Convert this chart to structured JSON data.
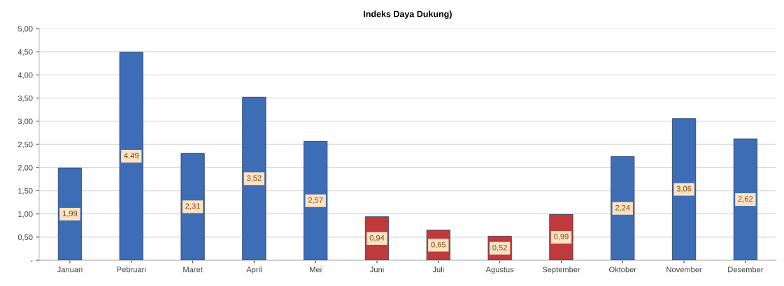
{
  "chart_data": {
    "type": "bar",
    "title": "Indeks Daya Dukung)",
    "categories": [
      "Januari",
      "Pebruari",
      "Maret",
      "April",
      "Mei",
      "Juni",
      "Juli",
      "Agustus",
      "September",
      "Oktober",
      "November",
      "Desember"
    ],
    "values": [
      1.99,
      4.49,
      2.31,
      3.52,
      2.57,
      0.94,
      0.65,
      0.52,
      0.99,
      2.24,
      3.06,
      2.62
    ],
    "colors": [
      "#3d6db4",
      "#3d6db4",
      "#3d6db4",
      "#3d6db4",
      "#3d6db4",
      "#c0393b",
      "#c0393b",
      "#c0393b",
      "#c0393b",
      "#3d6db4",
      "#3d6db4",
      "#3d6db4"
    ],
    "value_labels": [
      "1,99",
      "4,49",
      "2,31",
      "3,52",
      "2,57",
      "0,94",
      "0,65",
      "0,52",
      "0,99",
      "2,24",
      "3,06",
      "2,62"
    ],
    "ylim": [
      0,
      5
    ],
    "yticks": [
      {
        "value": 0,
        "label": "-"
      },
      {
        "value": 0.5,
        "label": "0,50"
      },
      {
        "value": 1,
        "label": "1,00"
      },
      {
        "value": 1.5,
        "label": "1,50"
      },
      {
        "value": 2,
        "label": "2,00"
      },
      {
        "value": 2.5,
        "label": "2,50"
      },
      {
        "value": 3,
        "label": "3,00"
      },
      {
        "value": 3.5,
        "label": "3,50"
      },
      {
        "value": 4,
        "label": "4,00"
      },
      {
        "value": 4.5,
        "label": "4,50"
      },
      {
        "value": 5,
        "label": "5,00"
      }
    ],
    "grid": "y"
  }
}
